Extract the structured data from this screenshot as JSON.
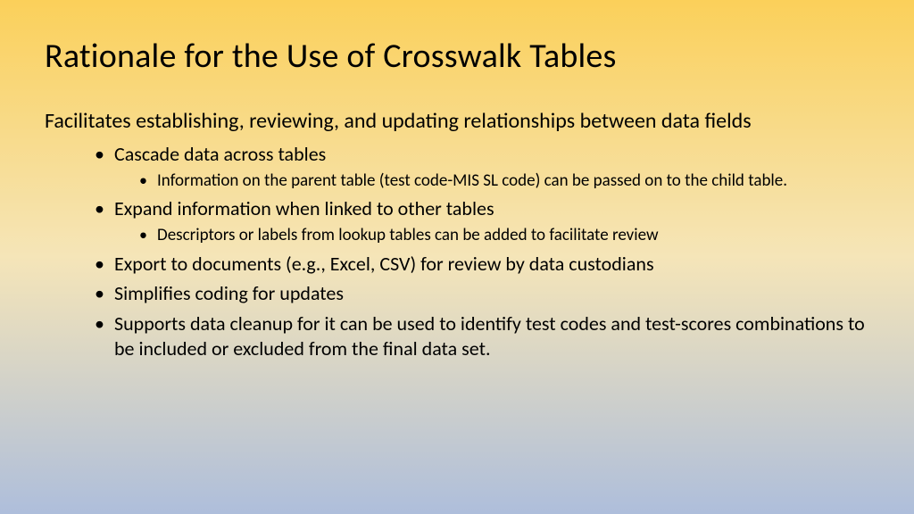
{
  "slide": {
    "title": "Rationale for the Use of Crosswalk Tables",
    "intro": "Facilitates establishing, reviewing, and updating relationships between data fields",
    "bullets": {
      "b1": "Cascade data across tables",
      "b1_sub1": " Information on the parent table (test code-MIS SL code) can be passed on to the child table.",
      "b2": " Expand information when linked to other tables",
      "b2_sub1": "Descriptors or labels from lookup tables can be added to facilitate review",
      "b3": "Export to documents (e.g., Excel, CSV) for review by data custodians",
      "b4": "Simplifies coding for updates",
      "b5": "Supports data cleanup for it can be used to identify test codes and test-scores combinations to be included or excluded from the final data set."
    },
    "styling": {
      "background_gradient_top": "#fbd05a",
      "background_gradient_mid": "#f5e5b8",
      "background_gradient_bottom": "#aebedb",
      "title_color": "#000000",
      "text_color": "#000000",
      "title_fontsize": 38,
      "intro_fontsize": 24,
      "level1_fontsize": 22,
      "level2_fontsize": 19,
      "font_family": "Calibri"
    }
  }
}
